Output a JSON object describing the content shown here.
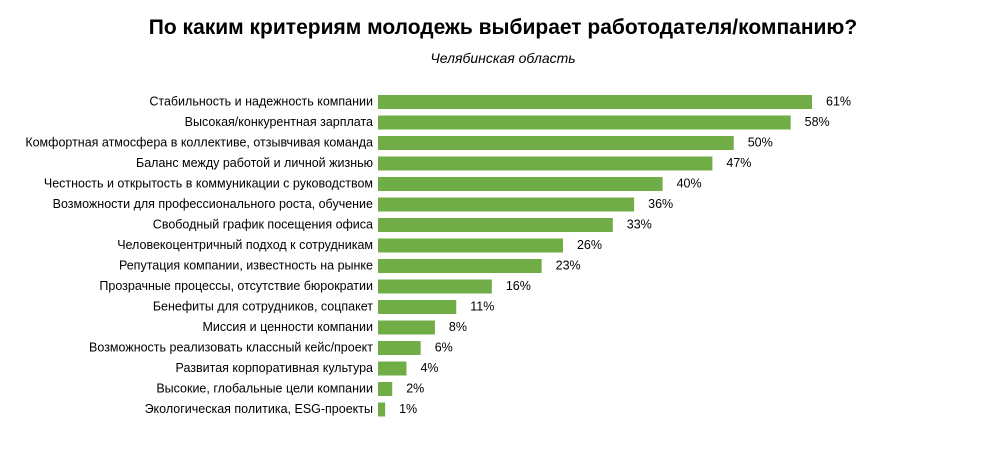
{
  "chart_data": {
    "type": "bar",
    "orientation": "horizontal",
    "title": "По каким критериям молодежь выбирает работодателя/компанию?",
    "subtitle": "Челябинская область",
    "value_suffix": "%",
    "bar_color": "#70ad47",
    "xlim": [
      0,
      61
    ],
    "grid": false,
    "legend": "none",
    "categories": [
      "Стабильность и надежность компании",
      "Высокая/конкурентная зарплата",
      "Комфортная атмосфера в коллективе, отзывчивая команда",
      "Баланс между работой и личной жизнью",
      "Честность и открытость в коммуникации с руководством",
      "Возможности для профессионального роста, обучение",
      "Свободный график посещения офиса",
      "Человекоцентричный подход к сотрудникам",
      "Репутация компании, известность на рынке",
      "Прозрачные процессы, отсутствие бюрократии",
      "Бенефиты для сотрудников, соцпакет",
      "Миссия и ценности компании",
      "Возможность реализовать классный кейс/проект",
      "Развитая корпоративная культура",
      "Высокие, глобальные цели компании",
      "Экологическая политика, ESG-проекты"
    ],
    "values": [
      61,
      58,
      50,
      47,
      40,
      36,
      33,
      26,
      23,
      16,
      11,
      8,
      6,
      4,
      2,
      1
    ]
  }
}
